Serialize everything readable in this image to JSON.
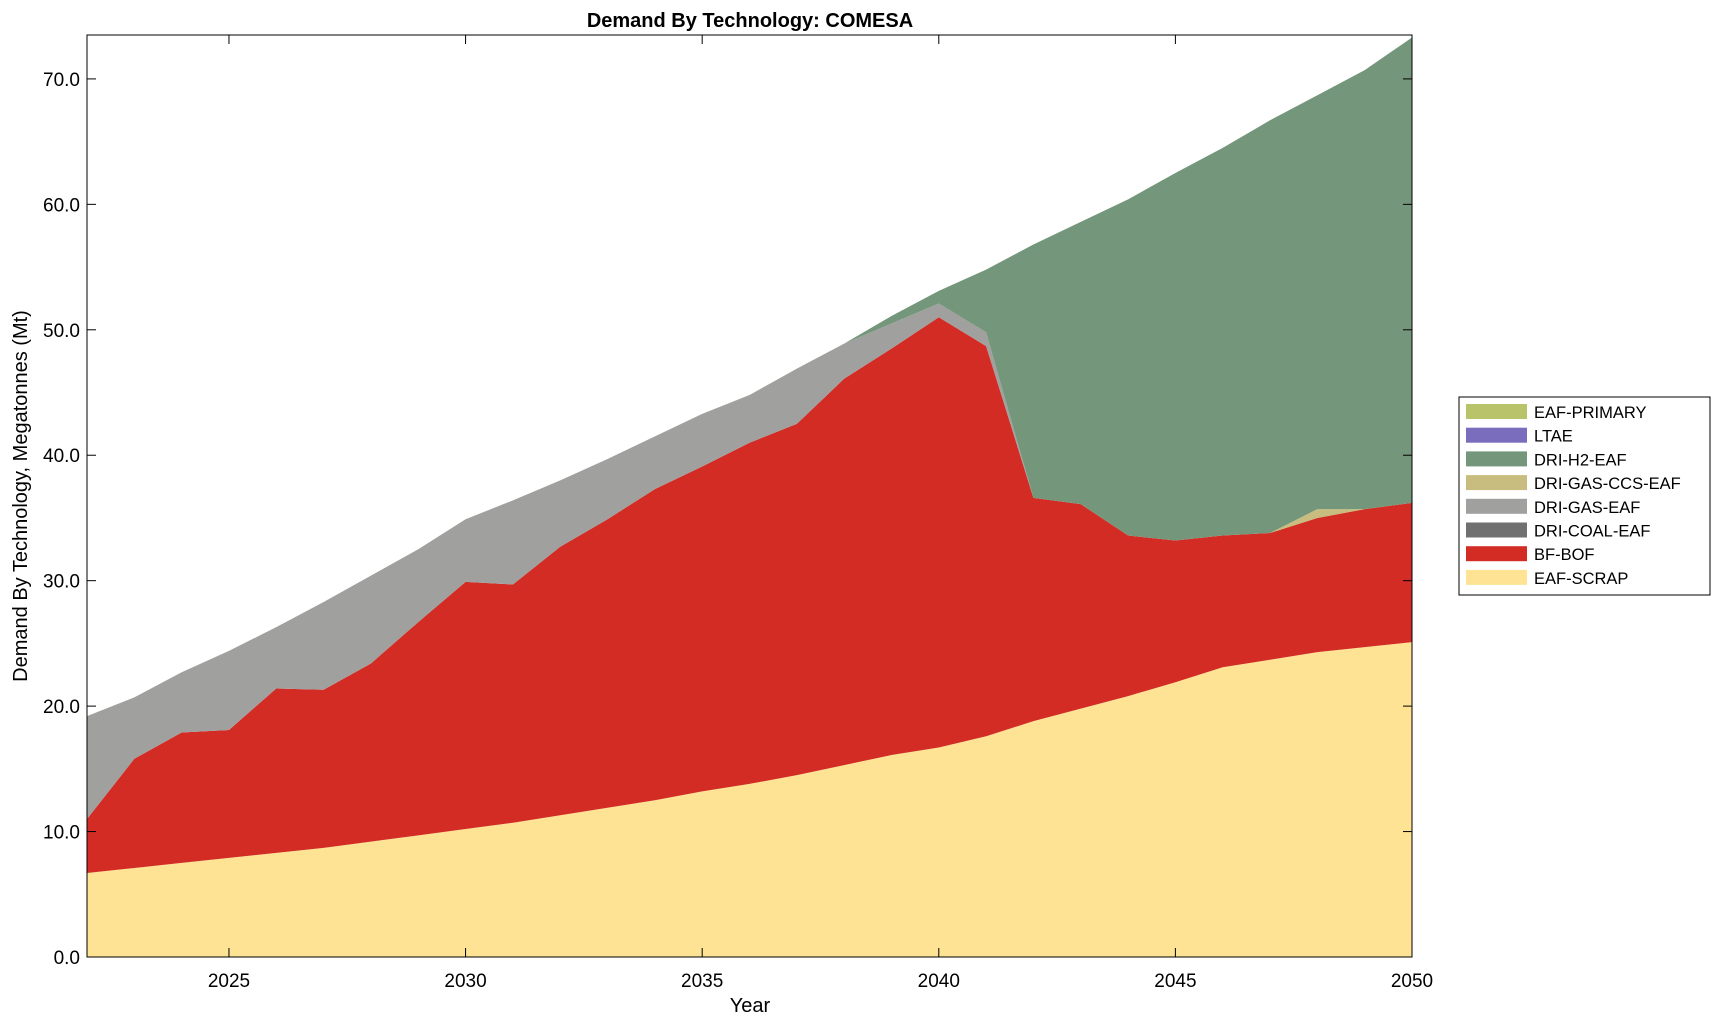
{
  "chart_data": {
    "type": "area",
    "stacked": true,
    "title": "Demand By Technology: COMESA",
    "xlabel": "Year",
    "ylabel": "Demand By Technology, Megatonnes (Mt)",
    "xlim": [
      2022,
      2050
    ],
    "ylim": [
      0,
      73.5
    ],
    "xticks": [
      "2025",
      "2030",
      "2035",
      "2040",
      "2045",
      "2050"
    ],
    "yticks": [
      "0.0",
      "10.0",
      "20.0",
      "30.0",
      "40.0",
      "50.0",
      "60.0",
      "70.0"
    ],
    "grid": false,
    "legend_position": "right",
    "x": [
      2022,
      2023,
      2024,
      2025,
      2026,
      2027,
      2028,
      2029,
      2030,
      2031,
      2032,
      2033,
      2034,
      2035,
      2036,
      2037,
      2038,
      2039,
      2040,
      2041,
      2042,
      2043,
      2044,
      2045,
      2046,
      2047,
      2048,
      2049,
      2050
    ],
    "series": [
      {
        "name": "EAF-SCRAP",
        "color": "#fde393",
        "values": [
          6.7,
          7.1,
          7.5,
          7.9,
          8.3,
          8.7,
          9.2,
          9.7,
          10.2,
          10.7,
          11.3,
          11.9,
          12.5,
          13.2,
          13.8,
          14.5,
          15.3,
          16.1,
          16.7,
          17.6,
          18.8,
          19.8,
          20.8,
          21.9,
          23.1,
          23.7,
          24.3,
          24.7,
          25.1
        ]
      },
      {
        "name": "BF-BOF",
        "color": "#d22c25",
        "values": [
          4.3,
          8.7,
          10.4,
          10.2,
          13.1,
          12.6,
          14.2,
          17.0,
          19.7,
          19.0,
          21.4,
          23.0,
          24.8,
          25.9,
          27.2,
          28.0,
          30.8,
          32.4,
          34.3,
          31.1,
          17.8,
          16.3,
          12.8,
          11.3,
          10.5,
          10.1,
          10.7,
          11.0,
          11.1
        ]
      },
      {
        "name": "DRI-COAL-EAF",
        "color": "#707070",
        "values": [
          0,
          0,
          0,
          0,
          0,
          0,
          0,
          0,
          0,
          0,
          0,
          0,
          0,
          0,
          0,
          0,
          0,
          0,
          0,
          0,
          0,
          0,
          0,
          0,
          0,
          0,
          0,
          0,
          0
        ]
      },
      {
        "name": "DRI-GAS-EAF",
        "color": "#a0a09e",
        "values": [
          8.2,
          4.9,
          4.8,
          6.3,
          4.9,
          7.0,
          7.0,
          5.8,
          5.0,
          6.7,
          5.3,
          4.8,
          4.2,
          4.2,
          3.8,
          4.4,
          2.8,
          2.0,
          1.1,
          1.1,
          0,
          0,
          0,
          0,
          0,
          0,
          0,
          0,
          0
        ]
      },
      {
        "name": "DRI-GAS-CCS-EAF",
        "color": "#c8bd7e",
        "values": [
          0,
          0,
          0,
          0,
          0,
          0,
          0,
          0,
          0,
          0,
          0,
          0,
          0,
          0,
          0,
          0,
          0,
          0,
          0,
          0,
          0,
          0,
          0,
          0,
          0,
          0,
          0.7,
          0,
          0
        ]
      },
      {
        "name": "DRI-H2-EAF",
        "color": "#74967a",
        "values": [
          0,
          0,
          0,
          0,
          0,
          0,
          0,
          0,
          0,
          0,
          0,
          0,
          0,
          0,
          0,
          0,
          0,
          0.6,
          1.0,
          5.0,
          20.2,
          22.5,
          26.8,
          29.3,
          30.9,
          32.9,
          33.0,
          35.0,
          37.1
        ]
      },
      {
        "name": "LTAE",
        "color": "#7b6dbd",
        "values": [
          0,
          0,
          0,
          0,
          0,
          0,
          0,
          0,
          0,
          0,
          0,
          0,
          0,
          0,
          0,
          0,
          0,
          0,
          0,
          0,
          0,
          0,
          0,
          0,
          0,
          0,
          0,
          0,
          0
        ]
      },
      {
        "name": "EAF-PRIMARY",
        "color": "#b8c36a",
        "values": [
          0,
          0,
          0,
          0,
          0,
          0,
          0,
          0,
          0,
          0,
          0,
          0,
          0,
          0,
          0,
          0,
          0,
          0,
          0,
          0,
          0,
          0,
          0,
          0,
          0,
          0,
          0,
          0,
          0
        ]
      }
    ],
    "legend_order": [
      "EAF-PRIMARY",
      "LTAE",
      "DRI-H2-EAF",
      "DRI-GAS-CCS-EAF",
      "DRI-GAS-EAF",
      "DRI-COAL-EAF",
      "BF-BOF",
      "EAF-SCRAP"
    ]
  }
}
